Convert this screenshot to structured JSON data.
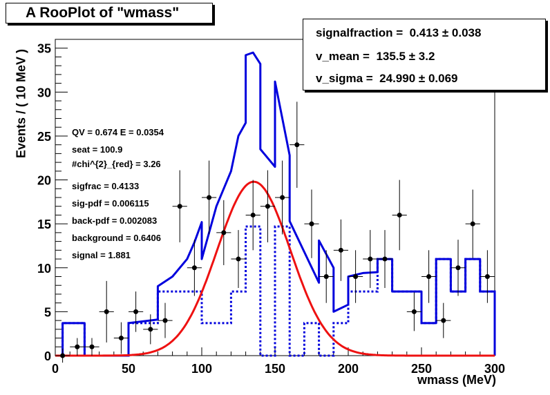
{
  "title": "A RooPlot of \"wmass\"",
  "params": [
    {
      "name": "signalfraction",
      "value": "0.413",
      "error": "0.038"
    },
    {
      "name": "v_mean",
      "value": "135.5",
      "error": "3.2"
    },
    {
      "name": "v_sigma",
      "value": "24.990",
      "error": "0.069"
    }
  ],
  "stats": [
    "QV = 0.674 E = 0.0354",
    "seat = 100.9",
    "#chi^{2}_{red} = 3.26",
    "sigfrac = 0.4133",
    "sig-pdf = 0.006115",
    "back-pdf = 0.002083",
    "background = 0.6406",
    "signal = 1.881"
  ],
  "chart_data": {
    "type": "line",
    "xlabel": "wmass (MeV)",
    "ylabel": "Events / ( 10 MeV )",
    "xlim": [
      0,
      300
    ],
    "ylim": [
      0,
      36
    ],
    "xticks": [
      0,
      50,
      100,
      150,
      200,
      250,
      300
    ],
    "yticks": [
      0,
      5,
      10,
      15,
      20,
      25,
      30,
      35
    ],
    "data_points": [
      {
        "x": 5,
        "y": 0,
        "err": 0.8
      },
      {
        "x": 15,
        "y": 1,
        "err": 1.0
      },
      {
        "x": 25,
        "y": 1,
        "err": 1.0
      },
      {
        "x": 35,
        "y": 5,
        "err": 3.5
      },
      {
        "x": 45,
        "y": 2,
        "err": 1.8
      },
      {
        "x": 55,
        "y": 5,
        "err": 2.3
      },
      {
        "x": 65,
        "y": 3,
        "err": 1.7
      },
      {
        "x": 75,
        "y": 4,
        "err": 2.0
      },
      {
        "x": 85,
        "y": 17,
        "err": 4.1
      },
      {
        "x": 95,
        "y": 10,
        "err": 3.2
      },
      {
        "x": 105,
        "y": 18,
        "err": 4.2
      },
      {
        "x": 115,
        "y": 14,
        "err": 3.7
      },
      {
        "x": 125,
        "y": 11,
        "err": 3.3
      },
      {
        "x": 135,
        "y": 16,
        "err": 4.0
      },
      {
        "x": 145,
        "y": 17,
        "err": 4.1
      },
      {
        "x": 155,
        "y": 18,
        "err": 4.2
      },
      {
        "x": 165,
        "y": 24,
        "err": 4.9
      },
      {
        "x": 175,
        "y": 15,
        "err": 3.9
      },
      {
        "x": 185,
        "y": 9,
        "err": 3.0
      },
      {
        "x": 195,
        "y": 12,
        "err": 3.5
      },
      {
        "x": 205,
        "y": 9,
        "err": 3.0
      },
      {
        "x": 215,
        "y": 11,
        "err": 3.3
      },
      {
        "x": 225,
        "y": 11,
        "err": 3.3
      },
      {
        "x": 235,
        "y": 16,
        "err": 4.0
      },
      {
        "x": 245,
        "y": 5,
        "err": 2.2
      },
      {
        "x": 255,
        "y": 9,
        "err": 3.0
      },
      {
        "x": 265,
        "y": 4,
        "err": 2.0
      },
      {
        "x": 275,
        "y": 10,
        "err": 3.2
      },
      {
        "x": 285,
        "y": 15,
        "err": 3.9
      },
      {
        "x": 295,
        "y": 9,
        "err": 3.0
      }
    ],
    "total_curve": [
      [
        3,
        0
      ],
      [
        5,
        0
      ],
      [
        5,
        3.7
      ],
      [
        20,
        3.7
      ],
      [
        20,
        0
      ],
      [
        50,
        0
      ],
      [
        50,
        3.7
      ],
      [
        70,
        4.1
      ],
      [
        70,
        7.9
      ],
      [
        80,
        9.0
      ],
      [
        90,
        11.0
      ],
      [
        95,
        12.9
      ],
      [
        100,
        15.2
      ],
      [
        100,
        11.0
      ],
      [
        110,
        17.0
      ],
      [
        120,
        21.0
      ],
      [
        125,
        25.0
      ],
      [
        130,
        26.5
      ],
      [
        130,
        34.2
      ],
      [
        135,
        34.5
      ],
      [
        140,
        33.2
      ],
      [
        140,
        23.5
      ],
      [
        150,
        21.5
      ],
      [
        150,
        31.2
      ],
      [
        160,
        22.8
      ],
      [
        160,
        15.3
      ],
      [
        170,
        11.8
      ],
      [
        180,
        8.3
      ],
      [
        180,
        13.1
      ],
      [
        190,
        10.0
      ],
      [
        190,
        5.0
      ],
      [
        200,
        5.8
      ],
      [
        200,
        9.0
      ],
      [
        210,
        9.4
      ],
      [
        220,
        9.5
      ],
      [
        220,
        11.0
      ],
      [
        230,
        11.0
      ],
      [
        230,
        7.3
      ],
      [
        250,
        7.3
      ],
      [
        250,
        3.7
      ],
      [
        260,
        3.7
      ],
      [
        260,
        11.0
      ],
      [
        270,
        11.0
      ],
      [
        270,
        7.3
      ],
      [
        280,
        7.3
      ],
      [
        280,
        11.0
      ],
      [
        290,
        11.0
      ],
      [
        290,
        7.3
      ],
      [
        300,
        7.3
      ],
      [
        300,
        0
      ]
    ],
    "background_curve": [
      [
        3,
        0
      ],
      [
        5,
        0
      ],
      [
        5,
        3.7
      ],
      [
        20,
        3.7
      ],
      [
        20,
        0
      ],
      [
        50,
        0
      ],
      [
        50,
        3.7
      ],
      [
        70,
        3.7
      ],
      [
        70,
        7.3
      ],
      [
        100,
        7.3
      ],
      [
        100,
        3.7
      ],
      [
        120,
        3.7
      ],
      [
        120,
        7.3
      ],
      [
        130,
        7.3
      ],
      [
        130,
        14.7
      ],
      [
        140,
        14.7
      ],
      [
        140,
        0
      ],
      [
        150,
        0
      ],
      [
        150,
        14.7
      ],
      [
        160,
        14.7
      ],
      [
        160,
        0
      ],
      [
        170,
        0
      ],
      [
        170,
        3.7
      ],
      [
        180,
        3.7
      ],
      [
        180,
        0
      ],
      [
        190,
        0
      ],
      [
        190,
        3.7
      ],
      [
        200,
        3.7
      ],
      [
        200,
        7.3
      ],
      [
        210,
        7.3
      ],
      [
        220,
        7.3
      ],
      [
        220,
        11.0
      ],
      [
        230,
        11.0
      ],
      [
        230,
        7.3
      ],
      [
        250,
        7.3
      ],
      [
        250,
        3.7
      ],
      [
        260,
        3.7
      ],
      [
        260,
        11.0
      ],
      [
        270,
        11.0
      ],
      [
        270,
        7.3
      ],
      [
        280,
        7.3
      ],
      [
        280,
        11.0
      ],
      [
        290,
        11.0
      ],
      [
        290,
        7.3
      ],
      [
        300,
        7.3
      ],
      [
        300,
        0
      ]
    ],
    "signal_gaussian": {
      "amplitude": 19.8,
      "mean": 135.5,
      "sigma": 24.99
    },
    "colors": {
      "total": "#0000dd",
      "background": "#0000dd",
      "signal": "#ee1111",
      "points": "#000000"
    }
  }
}
